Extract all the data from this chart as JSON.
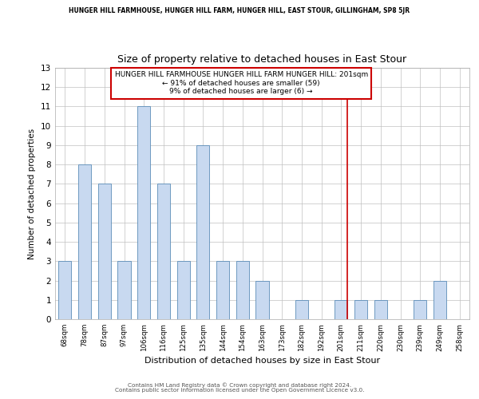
{
  "title": "Size of property relative to detached houses in East Stour",
  "xlabel": "Distribution of detached houses by size in East Stour",
  "ylabel": "Number of detached properties",
  "suptitle": "HUNGER HILL FARMHOUSE, HUNGER HILL FARM, HUNGER HILL, EAST STOUR, GILLINGHAM, SP8 5JR",
  "bin_labels": [
    "68sqm",
    "78sqm",
    "87sqm",
    "97sqm",
    "106sqm",
    "116sqm",
    "125sqm",
    "135sqm",
    "144sqm",
    "154sqm",
    "163sqm",
    "173sqm",
    "182sqm",
    "192sqm",
    "201sqm",
    "211sqm",
    "220sqm",
    "230sqm",
    "239sqm",
    "249sqm",
    "258sqm"
  ],
  "bar_heights": [
    3,
    8,
    7,
    3,
    11,
    7,
    3,
    9,
    3,
    3,
    2,
    0,
    1,
    0,
    1,
    1,
    1,
    0,
    1,
    2,
    0
  ],
  "bar_color": "#c8d9f0",
  "bar_edge_color": "#5b8db8",
  "highlight_index": 14,
  "highlight_line_color": "#cc0000",
  "ylim": [
    0,
    13
  ],
  "yticks": [
    0,
    1,
    2,
    3,
    4,
    5,
    6,
    7,
    8,
    9,
    10,
    11,
    12,
    13
  ],
  "annotation_title": "HUNGER HILL FARMHOUSE HUNGER HILL FARM HUNGER HILL: 201sqm",
  "annotation_line1": "← 91% of detached houses are smaller (59)",
  "annotation_line2": "9% of detached houses are larger (6) →",
  "footer_line1": "Contains HM Land Registry data © Crown copyright and database right 2024.",
  "footer_line2": "Contains public sector information licensed under the Open Government Licence v3.0.",
  "grid_color": "#c0c0c0",
  "background_color": "#ffffff"
}
